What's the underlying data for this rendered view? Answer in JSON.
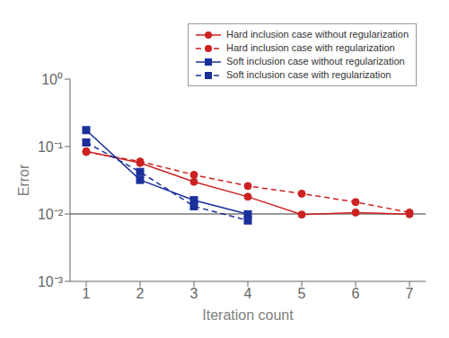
{
  "chart_data": {
    "type": "line",
    "xlabel": "Iteration count",
    "ylabel": "Error",
    "log": "y",
    "xlim": [
      0.7,
      7.3
    ],
    "xticks": [
      1,
      2,
      3,
      4,
      5,
      6,
      7
    ],
    "ylim": [
      0.001,
      1
    ],
    "yticks": [
      {
        "value": 0.001,
        "label": "10⁻³"
      },
      {
        "value": 0.01,
        "label": "10⁻²"
      },
      {
        "value": 0.1,
        "label": "10⁻¹"
      },
      {
        "value": 1,
        "label": "10⁰"
      }
    ],
    "hline": 0.01,
    "grid": false,
    "legend": "upper right",
    "series": [
      {
        "name": "Hard inclusion case without regularization",
        "color": "#cc2222",
        "line_style": "solid",
        "marker": "circle",
        "x": [
          1,
          2,
          3,
          4,
          5,
          6,
          7
        ],
        "values": [
          0.085,
          0.057,
          0.03,
          0.018,
          0.0098,
          0.0105,
          0.0099
        ]
      },
      {
        "name": "Hard inclusion case with regularization",
        "color": "#cc2222",
        "line_style": "dashed",
        "marker": "circle",
        "x": [
          1,
          2,
          3,
          4,
          5,
          6,
          7
        ],
        "values": [
          0.083,
          0.06,
          0.038,
          0.026,
          0.02,
          0.015,
          0.0105
        ]
      },
      {
        "name": "Soft inclusion case without regularization",
        "color": "#1a2f9a",
        "line_style": "solid",
        "marker": "square",
        "x": [
          1,
          2,
          3,
          4
        ],
        "values": [
          0.175,
          0.032,
          0.016,
          0.0099
        ]
      },
      {
        "name": "Soft inclusion case with regularization",
        "color": "#1a2f9a",
        "line_style": "dashed",
        "marker": "square",
        "x": [
          1,
          2,
          3,
          4
        ],
        "values": [
          0.115,
          0.042,
          0.013,
          0.008
        ]
      }
    ]
  }
}
